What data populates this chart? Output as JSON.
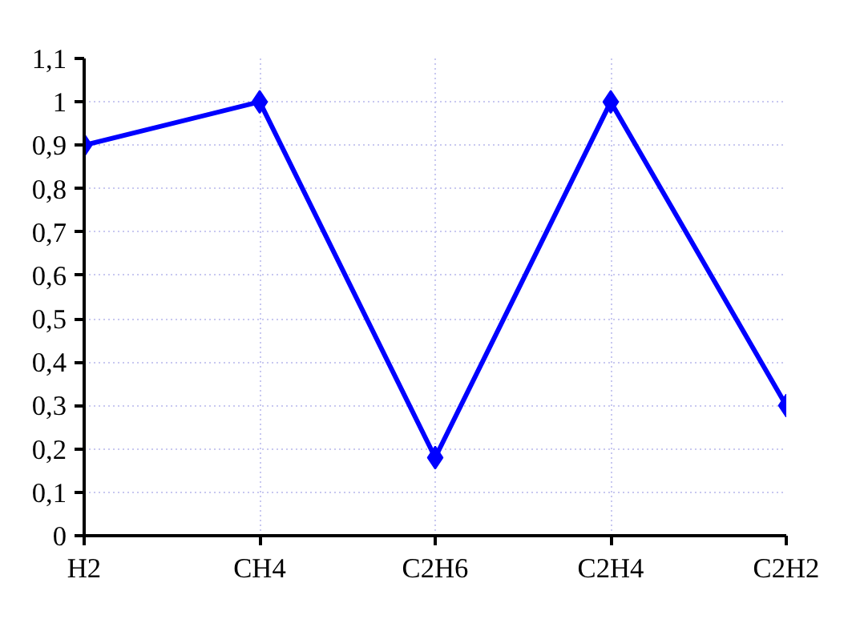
{
  "chart_data": {
    "type": "line",
    "categories": [
      "H2",
      "CH4",
      "C2H6",
      "C2H4",
      "C2H2"
    ],
    "series": [
      {
        "color": "#0000ff",
        "values": [
          0.9,
          1.0,
          0.18,
          1.0,
          0.3
        ]
      }
    ],
    "ylim": [
      0,
      1.1
    ],
    "yticks": [
      0,
      {
        "value": 0.1,
        "label": "0,1"
      },
      {
        "value": 0.2,
        "label": "0,2"
      },
      {
        "value": 0.3,
        "label": "0,3"
      },
      {
        "value": 0.4,
        "label": "0,4"
      },
      {
        "value": 0.5,
        "label": "0,5"
      },
      {
        "value": 0.6,
        "label": "0,6"
      },
      {
        "value": 0.7,
        "label": "0,7"
      },
      {
        "value": 0.8,
        "label": "0,8"
      },
      {
        "value": 0.9,
        "label": "0,9"
      },
      1,
      {
        "value": 1.1,
        "label": "1,1"
      }
    ],
    "grid": true,
    "marker": "diamond",
    "line_style": "solid"
  }
}
